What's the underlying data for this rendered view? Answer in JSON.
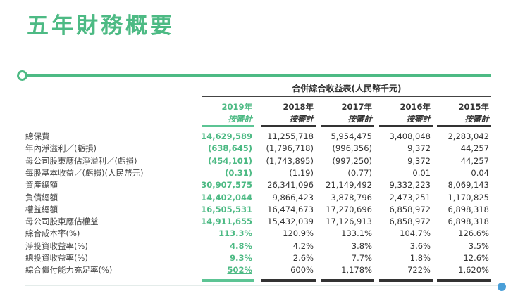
{
  "title": "五年財務概要",
  "table": {
    "caption": "合併綜合收益表(人民幣千元)",
    "columns": [
      {
        "year": "2019年",
        "basis": "按審計"
      },
      {
        "year": "2018年",
        "basis": "按審計"
      },
      {
        "year": "2017年",
        "basis": "按審計"
      },
      {
        "year": "2016年",
        "basis": "按審計"
      },
      {
        "year": "2015年",
        "basis": "按審計"
      }
    ],
    "rows": [
      {
        "label": "總保費",
        "values": [
          "14,629,589",
          "11,255,718",
          "5,954,475",
          "3,408,048",
          "2,283,042"
        ]
      },
      {
        "label": "年內淨溢利／(虧損)",
        "values": [
          "(638,645)",
          "(1,796,718)",
          "(996,356)",
          "9,372",
          "44,257"
        ]
      },
      {
        "label": "母公司股東應佔淨溢利／(虧損)",
        "values": [
          "(454,101)",
          "(1,743,895)",
          "(997,250)",
          "9,372",
          "44,257"
        ]
      },
      {
        "label": "每股基本收益／(虧損)(人民幣元)",
        "values": [
          "(0.31)",
          "(1.19)",
          "(0.77)",
          "0.01",
          "0.04"
        ]
      },
      {
        "label": "資產總額",
        "values": [
          "30,907,575",
          "26,341,096",
          "21,149,492",
          "9,332,223",
          "8,069,143"
        ]
      },
      {
        "label": "負債總額",
        "values": [
          "14,402,044",
          "9,866,423",
          "3,878,796",
          "2,473,251",
          "1,170,825"
        ]
      },
      {
        "label": "權益總額",
        "values": [
          "16,505,531",
          "16,474,673",
          "17,270,696",
          "6,858,972",
          "6,898,318"
        ]
      },
      {
        "label": "母公司股東應佔權益",
        "values": [
          "14,911,655",
          "15,432,039",
          "17,126,913",
          "6,858,972",
          "6,898,318"
        ]
      },
      {
        "label": "綜合成本率(%)",
        "values": [
          "113.3%",
          "120.9%",
          "133.1%",
          "104.7%",
          "126.6%"
        ]
      },
      {
        "label": "淨投資收益率(%)",
        "values": [
          "4.8%",
          "4.2%",
          "3.8%",
          "3.6%",
          "3.5%"
        ]
      },
      {
        "label": "總投資收益率(%)",
        "values": [
          "9.3%",
          "2.6%",
          "7.7%",
          "1.8%",
          "12.6%"
        ]
      },
      {
        "label": "綜合償付能力充足率(%)",
        "values": [
          "502%",
          "600%",
          "1,178%",
          "722%",
          "1,620%"
        ]
      }
    ]
  },
  "colors": {
    "accent": "#4dba84",
    "text": "#333333"
  }
}
